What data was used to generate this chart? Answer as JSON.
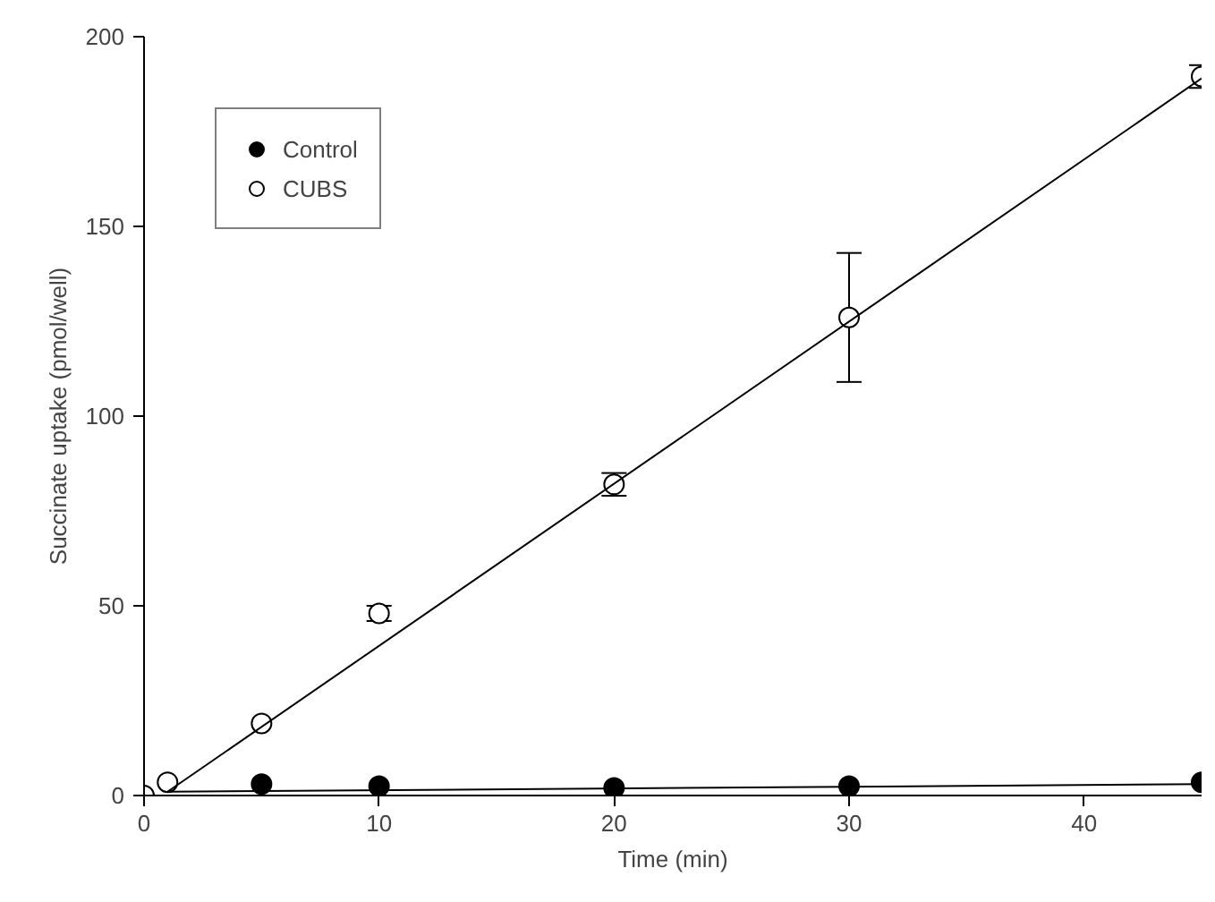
{
  "chart_data": {
    "type": "scatter",
    "xlabel": "Time (min)",
    "ylabel": "Succinate uptake (pmol/well)",
    "xlim": [
      0,
      45
    ],
    "ylim": [
      0,
      200
    ],
    "xticks": [
      0,
      10,
      20,
      30,
      40
    ],
    "yticks": [
      0,
      50,
      100,
      150,
      200
    ],
    "grid": false,
    "legend": "top left",
    "marker": "circle",
    "series": [
      {
        "name": "Control",
        "color": "#000000",
        "x": [
          5,
          10,
          20,
          30,
          45
        ],
        "values": [
          3,
          2.5,
          2,
          2.5,
          3.5
        ]
      },
      {
        "name": "CUBS",
        "color": "#ffffff",
        "x": [
          0,
          1,
          5,
          10,
          20,
          30,
          45
        ],
        "values": [
          0,
          3.5,
          19,
          48,
          82,
          126,
          189.5
        ],
        "errors": [
          null,
          null,
          null,
          2,
          3,
          17,
          3
        ]
      },
      {
        "type": "line",
        "marker": "none",
        "color": "#000000",
        "x": [
          1,
          45
        ],
        "values": [
          1,
          3
        ]
      },
      {
        "type": "line",
        "marker": "none",
        "color": "#000000",
        "x": [
          1,
          45
        ],
        "values": [
          1,
          189
        ]
      }
    ]
  }
}
